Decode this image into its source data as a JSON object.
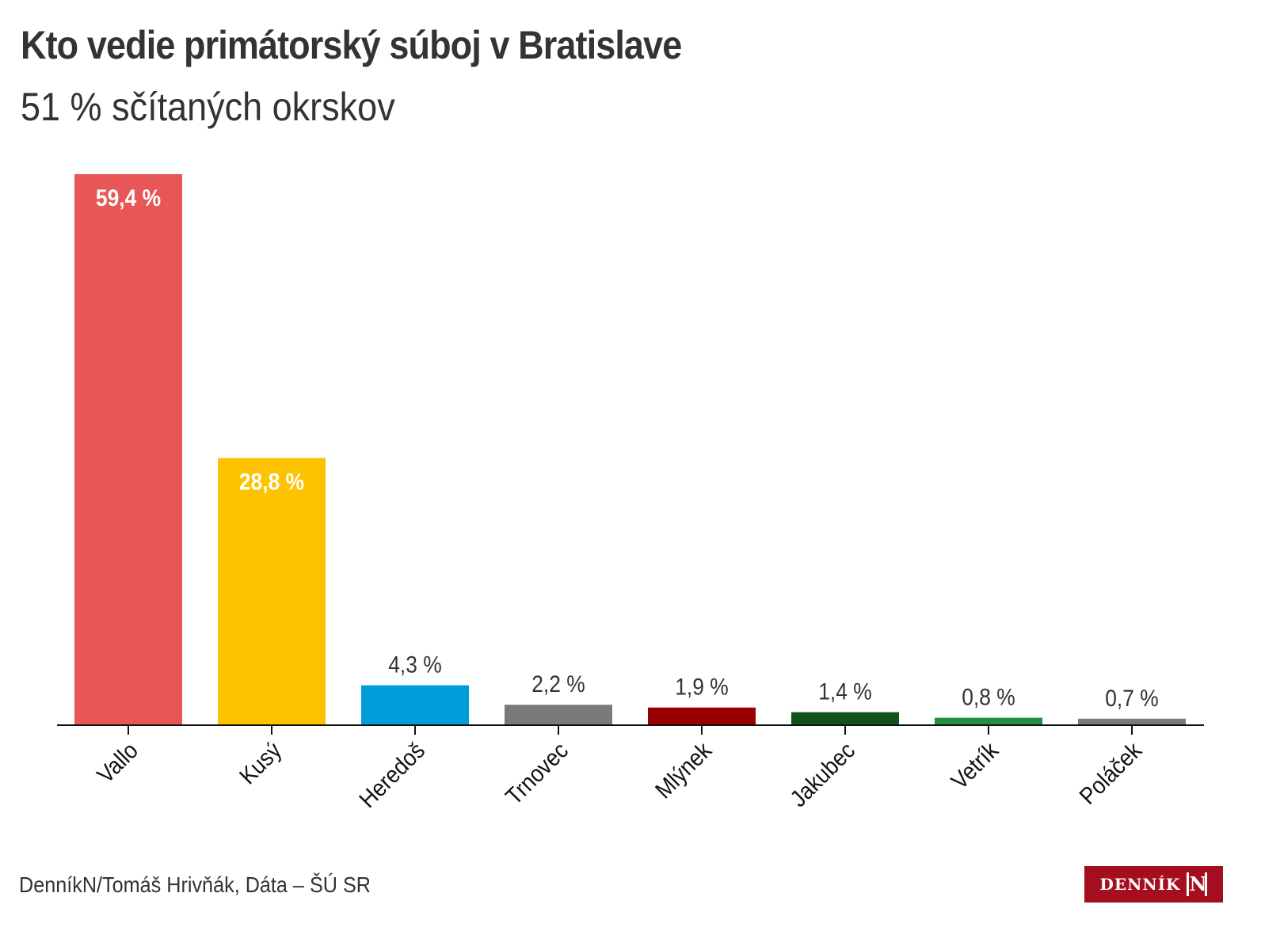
{
  "title": "Kto vedie primátorský súboj v Bratislave",
  "subtitle": "51 % sčítaných okrskov",
  "source": "DenníkN/Tomáš Hrivňák, Dáta – ŠÚ SR",
  "logo": {
    "word": "DENNÍK",
    "mark": "N",
    "color": "#a50e1e"
  },
  "chart_data": {
    "type": "bar",
    "title": "Kto vedie primátorský súboj v Bratislave",
    "subtitle": "51 % sčítaných okrskov",
    "xlabel": "",
    "ylabel": "",
    "ylim": [
      0,
      59.4
    ],
    "grid": false,
    "categories": [
      "Vallo",
      "Kusý",
      "Heredoš",
      "Trnovec",
      "Mlýnek",
      "Jakubec",
      "Vetrík",
      "Poláček"
    ],
    "values": [
      59.4,
      28.8,
      4.3,
      2.2,
      1.9,
      1.4,
      0.8,
      0.7
    ],
    "labels": [
      "59,4 %",
      "28,8 %",
      "4,3 %",
      "2,2 %",
      "1,9 %",
      "1,4 %",
      "0,8 %",
      "0,7 %"
    ],
    "colors": [
      "#e85757",
      "#fdc300",
      "#009ddb",
      "#7a7a7a",
      "#990000",
      "#13531a",
      "#1f8f40",
      "#7a7a7a"
    ]
  }
}
